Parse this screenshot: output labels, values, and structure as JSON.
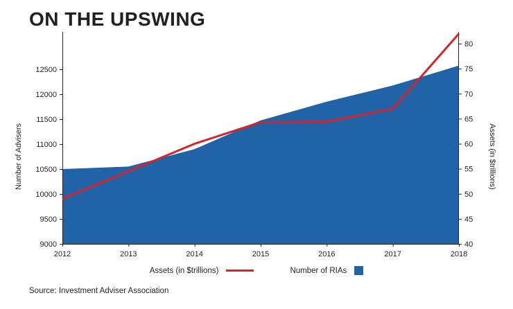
{
  "chart_data": {
    "type": "combo",
    "title": "ON THE UPSWING",
    "source": "Source: Investment Adviser Association",
    "x": [
      2012,
      2013,
      2014,
      2015,
      2016,
      2017,
      2018
    ],
    "series": [
      {
        "name": "Number of RIAs",
        "type": "area",
        "axis": "left",
        "color": "#2063a7",
        "values": [
          10500,
          10550,
          10900,
          11475,
          11850,
          12175,
          12575
        ]
      },
      {
        "name": "Assets (in $trillions)",
        "type": "line",
        "axis": "right",
        "color": "#d7212b",
        "values": [
          49,
          54.5,
          60,
          64.3,
          64.4,
          67,
          82
        ]
      }
    ],
    "left_axis": {
      "label": "Number of Advisers",
      "min": 9000,
      "max": 12500,
      "tick_step": 500,
      "ticks": [
        9000,
        9500,
        10000,
        10500,
        11000,
        11500,
        12000,
        12500
      ]
    },
    "right_axis": {
      "label": "Assets (in $trillions)",
      "min": 40,
      "max": 80,
      "tick_step": 5,
      "ticks": [
        40,
        45,
        50,
        55,
        60,
        65,
        70,
        75,
        80
      ]
    },
    "x_axis": {
      "ticks": [
        "2012",
        "2013",
        "2014",
        "2015",
        "2016",
        "2017",
        "2018"
      ]
    },
    "grid": false,
    "legend_position": "bottom-center",
    "legend": [
      {
        "label": "Assets (in $trillions)",
        "swatch": "line",
        "color": "#d7212b"
      },
      {
        "label": "Number of RIAs",
        "swatch": "square",
        "color": "#2063a7"
      }
    ]
  }
}
